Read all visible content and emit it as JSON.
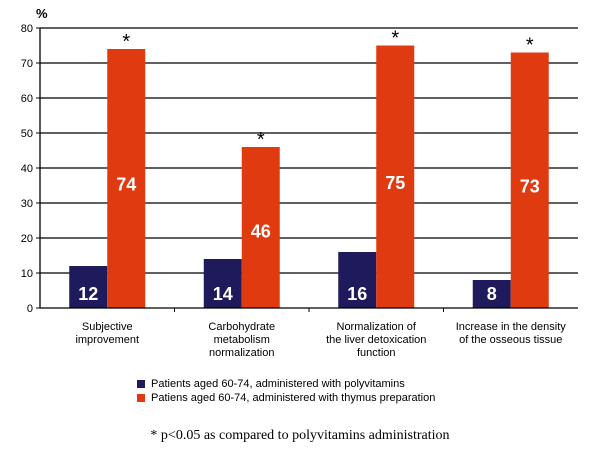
{
  "chart_data": {
    "type": "bar",
    "title": "",
    "xlabel": "",
    "ylabel": "%",
    "ylim": [
      0,
      80
    ],
    "yticks": [
      0,
      10,
      20,
      30,
      40,
      50,
      60,
      70,
      80
    ],
    "grid": true,
    "legend_position": "bottom",
    "categories": [
      [
        "Subjective",
        "improvement"
      ],
      [
        "Carbohydrate",
        "metabolism",
        "normalization"
      ],
      [
        "Normalization of",
        "the liver detoxication",
        "function"
      ],
      [
        "Increase in the density",
        "of the osseous tissue"
      ]
    ],
    "series": [
      {
        "name": "Patients aged 60-74, administered with polyvitamins",
        "color": "#1f1a5c",
        "values": [
          12,
          14,
          16,
          8
        ],
        "labels": [
          "12",
          "14",
          "16",
          "8"
        ]
      },
      {
        "name": "Patiens aged 60-74, administered with thymus preparation",
        "color": "#e03a10",
        "values": [
          74,
          46,
          75,
          73
        ],
        "labels": [
          "74",
          "46",
          "75",
          "73"
        ],
        "markers": [
          "*",
          "*",
          "*",
          "*"
        ]
      }
    ],
    "footnote": "*  p<0.05 as compared to polyvitamins administration"
  }
}
